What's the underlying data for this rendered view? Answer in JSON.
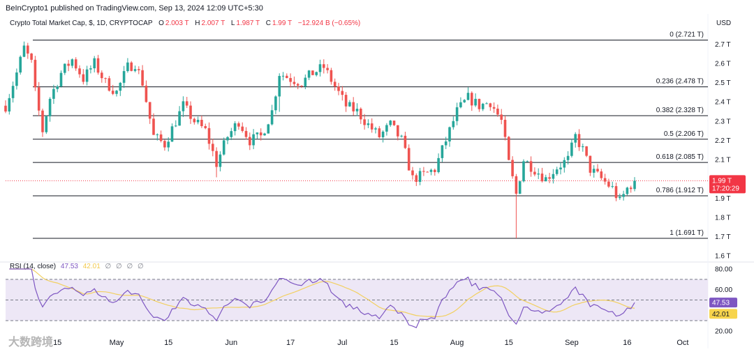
{
  "header": {
    "publisher": "BeInCrypto1 published on TradingView.com, Sep 13, 2024 12:09 UTC+5:30"
  },
  "legend": {
    "symbol": "Crypto Total Market Cap, $, 1D, CRYPTOCAP",
    "open_label": "O",
    "open": "2.003 T",
    "high_label": "H",
    "high": "2.007 T",
    "low_label": "L",
    "low": "1.987 T",
    "close_label": "C",
    "close": "1.99 T",
    "change": "−12.924 B (−0.65%)"
  },
  "currency": "USD",
  "watermark": "大数跨境",
  "colors": {
    "up": "#26a69a",
    "down": "#ef5350",
    "rsi": "#7e57c2",
    "rsi_ma": "#f2d060",
    "band": "#ede7f6",
    "price_tag": "#f23645",
    "rsi_tag": "#7e57c2",
    "rsi_ma_tag": "#f7d44c"
  },
  "chart_data": [
    {
      "type": "candlestick",
      "y_unit": "T USD",
      "y_range": [
        1.6,
        2.75
      ],
      "y_ticks": [
        "2.7 T",
        "2.6 T",
        "2.5 T",
        "2.4 T",
        "2.3 T",
        "2.2 T",
        "2.1 T",
        "1.9 T",
        "1.8 T",
        "1.7 T",
        "1.6 T"
      ],
      "y_tick_values": [
        2.7,
        2.6,
        2.5,
        2.4,
        2.3,
        2.2,
        2.1,
        1.9,
        1.8,
        1.7,
        1.6
      ],
      "x_labels": [
        "15",
        "May",
        "15",
        "Jun",
        "17",
        "Jul",
        "15",
        "Aug",
        "15",
        "Sep",
        "16",
        "Oct"
      ],
      "x_label_days": [
        14,
        30,
        44,
        61,
        77,
        91,
        105,
        122,
        136,
        153,
        168,
        183
      ],
      "fib_levels": [
        {
          "label": "0 (2.721 T)",
          "value": 2.721
        },
        {
          "label": "0.236 (2.478 T)",
          "value": 2.478
        },
        {
          "label": "0.382 (2.328 T)",
          "value": 2.328
        },
        {
          "label": "0.5 (2.206 T)",
          "value": 2.206
        },
        {
          "label": "0.618 (2.085 T)",
          "value": 2.085
        },
        {
          "label": "0.786 (1.912 T)",
          "value": 1.912
        },
        {
          "label": "1 (1.691 T)",
          "value": 1.691
        }
      ],
      "current_price": {
        "value": 1.99,
        "label": "1.99 T",
        "countdown": "17:20:29"
      },
      "close_series_anchors": [
        [
          0,
          2.38
        ],
        [
          3,
          2.55
        ],
        [
          5,
          2.68
        ],
        [
          7,
          2.6
        ],
        [
          8,
          2.45
        ],
        [
          10,
          2.25
        ],
        [
          12,
          2.42
        ],
        [
          15,
          2.55
        ],
        [
          18,
          2.62
        ],
        [
          21,
          2.52
        ],
        [
          24,
          2.6
        ],
        [
          27,
          2.5
        ],
        [
          30,
          2.45
        ],
        [
          33,
          2.58
        ],
        [
          35,
          2.6
        ],
        [
          37,
          2.5
        ],
        [
          40,
          2.22
        ],
        [
          43,
          2.18
        ],
        [
          46,
          2.3
        ],
        [
          48,
          2.38
        ],
        [
          51,
          2.3
        ],
        [
          54,
          2.25
        ],
        [
          57,
          2.08
        ],
        [
          60,
          2.22
        ],
        [
          63,
          2.3
        ],
        [
          66,
          2.2
        ],
        [
          69,
          2.22
        ],
        [
          72,
          2.35
        ],
        [
          74,
          2.55
        ],
        [
          77,
          2.52
        ],
        [
          80,
          2.5
        ],
        [
          83,
          2.55
        ],
        [
          86,
          2.58
        ],
        [
          89,
          2.48
        ],
        [
          92,
          2.38
        ],
        [
          95,
          2.35
        ],
        [
          98,
          2.28
        ],
        [
          101,
          2.22
        ],
        [
          104,
          2.28
        ],
        [
          107,
          2.2
        ],
        [
          110,
          2.0
        ],
        [
          113,
          2.02
        ],
        [
          116,
          2.05
        ],
        [
          119,
          2.2
        ],
        [
          122,
          2.35
        ],
        [
          125,
          2.42
        ],
        [
          128,
          2.38
        ],
        [
          131,
          2.4
        ],
        [
          134,
          2.3
        ],
        [
          136,
          2.08
        ],
        [
          138,
          1.92
        ],
        [
          140,
          2.1
        ],
        [
          143,
          2.05
        ],
        [
          146,
          2.0
        ],
        [
          149,
          2.06
        ],
        [
          152,
          2.1
        ],
        [
          154,
          2.22
        ],
        [
          156,
          2.15
        ],
        [
          158,
          2.05
        ],
        [
          161,
          2.0
        ],
        [
          164,
          1.95
        ],
        [
          166,
          1.88
        ],
        [
          168,
          1.95
        ],
        [
          170,
          1.99
        ]
      ]
    },
    {
      "type": "line",
      "title": "RSI (14, close)",
      "series": [
        {
          "name": "RSI",
          "last": 47.53,
          "last_label": "47.53"
        },
        {
          "name": "RSI-based MA",
          "last": 42.01,
          "last_label": "42.01"
        }
      ],
      "legend_extra": "∅ ∅ ∅ ∅",
      "y_range": [
        20,
        82
      ],
      "y_ticks": [
        "80.00",
        "60.00",
        "20.00"
      ],
      "y_tick_values": [
        80,
        60,
        20
      ],
      "bands": {
        "upper": 70,
        "middle": 50,
        "lower": 30
      }
    }
  ]
}
